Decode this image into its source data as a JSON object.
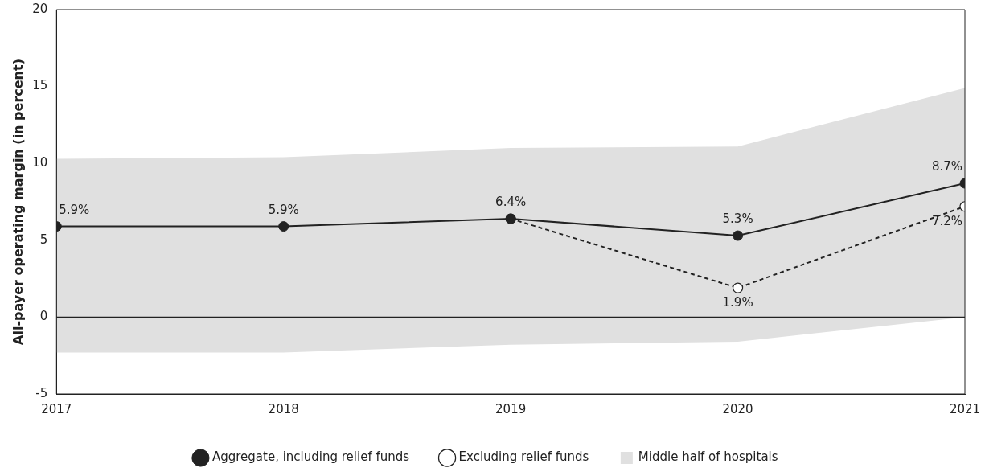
{
  "chart_data": {
    "type": "line",
    "ylabel": "All-payer operating margin (in percent)",
    "x": [
      2017,
      2018,
      2019,
      2020,
      2021
    ],
    "xlim": [
      2017,
      2021
    ],
    "xticks": [
      2017,
      2018,
      2019,
      2020,
      2021
    ],
    "ylim": [
      -5,
      20
    ],
    "yticks": [
      -5,
      0,
      5,
      10,
      15,
      20
    ],
    "grid": false,
    "legend": "bottom",
    "marker": "circle",
    "ref_lines": [
      {
        "axis": "y",
        "value": 0,
        "color": "#222222"
      }
    ],
    "series": [
      {
        "name": "Aggregate, including relief funds",
        "color": "#222222",
        "line_style": "solid",
        "values": [
          5.9,
          5.9,
          6.4,
          5.3,
          8.7
        ],
        "value_labels": [
          "5.9%",
          "5.9%",
          "6.4%",
          "5.3%",
          "8.7%"
        ]
      },
      {
        "name": "Excluding relief funds",
        "color": "#222222",
        "line_style": "dashed",
        "values": [
          null,
          null,
          6.4,
          1.9,
          7.2
        ],
        "value_labels": [
          null,
          null,
          null,
          "1.9%",
          "7.2%"
        ]
      },
      {
        "name": "Middle half of hospitals",
        "color": "#e0e0e0",
        "values": [
          null,
          null,
          null,
          null,
          null
        ],
        "lower": [
          -2.3,
          -2.3,
          -1.8,
          -1.6,
          0
        ],
        "upper": [
          10.3,
          10.4,
          11.0,
          11.1,
          14.9
        ]
      }
    ]
  }
}
